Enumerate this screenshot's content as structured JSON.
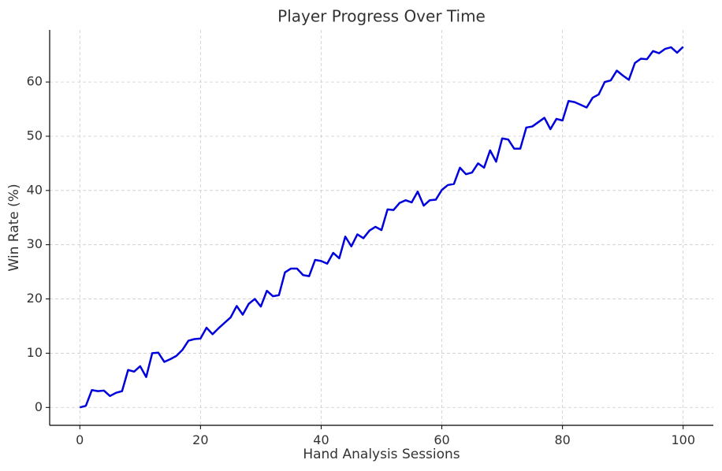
{
  "chart_data": {
    "type": "line",
    "title": "Player Progress Over Time",
    "x_label": "Hand Analysis Sessions",
    "y_label": "Win Rate (%)",
    "x": [
      0,
      1,
      2,
      3,
      4,
      5,
      6,
      7,
      8,
      9,
      10,
      11,
      12,
      13,
      14,
      15,
      16,
      17,
      18,
      19,
      20,
      21,
      22,
      23,
      24,
      25,
      26,
      27,
      28,
      29,
      30,
      31,
      32,
      33,
      34,
      35,
      36,
      37,
      38,
      39,
      40,
      41,
      42,
      43,
      44,
      45,
      46,
      47,
      48,
      49,
      50,
      51,
      52,
      53,
      54,
      55,
      56,
      57,
      58,
      59,
      60,
      61,
      62,
      63,
      64,
      65,
      66,
      67,
      68,
      69,
      70,
      71,
      72,
      73,
      74,
      75,
      76,
      77,
      78,
      79,
      80,
      81,
      82,
      83,
      84,
      85,
      86,
      87,
      88,
      89,
      90,
      91,
      92,
      93,
      94,
      95,
      96,
      97,
      98,
      99,
      100
    ],
    "series": [
      {
        "name": "Win Rate",
        "color": "#0000dd",
        "values": [
          0,
          0.3,
          3.2,
          3.0,
          3.1,
          2.1,
          2.7,
          3.0,
          6.9,
          6.6,
          7.6,
          5.6,
          10.0,
          10.1,
          8.4,
          8.9,
          9.5,
          10.6,
          12.3,
          12.6,
          12.7,
          14.7,
          13.5,
          14.6,
          15.6,
          16.6,
          18.7,
          17.1,
          19.1,
          20.0,
          18.6,
          21.5,
          20.5,
          20.7,
          24.9,
          25.6,
          25.6,
          24.4,
          24.2,
          27.2,
          27.0,
          26.5,
          28.5,
          27.5,
          31.5,
          29.7,
          31.9,
          31.2,
          32.6,
          33.3,
          32.7,
          36.5,
          36.4,
          37.7,
          38.2,
          37.8,
          39.8,
          37.2,
          38.2,
          38.3,
          40.1,
          41.0,
          41.2,
          44.2,
          43.0,
          43.3,
          45.0,
          44.2,
          47.4,
          45.3,
          49.6,
          49.4,
          47.7,
          47.7,
          51.6,
          51.8,
          52.6,
          53.4,
          51.3,
          53.2,
          52.9,
          56.5,
          56.3,
          55.8,
          55.3,
          57.1,
          57.7,
          60.0,
          60.3,
          62.1,
          61.2,
          60.4,
          63.5,
          64.3,
          64.2,
          65.7,
          65.3,
          66.1,
          66.4,
          65.4,
          66.5
        ]
      }
    ],
    "xlim": [
      -5,
      105
    ],
    "ylim": [
      -3.3,
      69.6
    ],
    "xticks": [
      0,
      20,
      40,
      60,
      80,
      100
    ],
    "yticks": [
      0,
      10,
      20,
      30,
      40,
      50,
      60
    ],
    "grid": true
  }
}
